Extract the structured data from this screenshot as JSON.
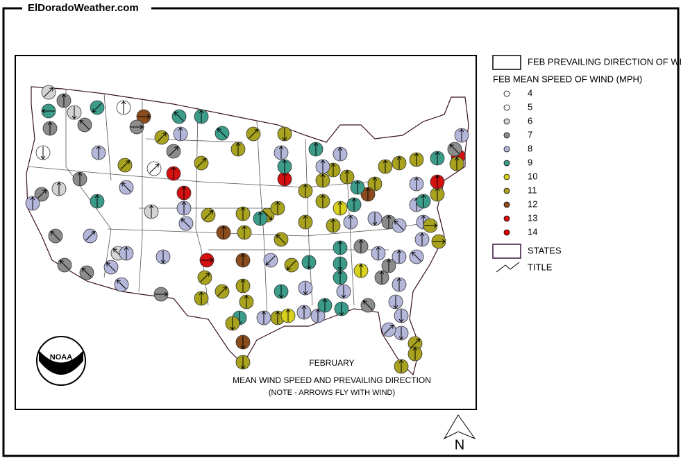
{
  "header": {
    "site": "ElDoradoWeather.com"
  },
  "map": {
    "title": "FEBRUARY",
    "subtitle": "MEAN WIND SPEED AND PREVAILING DIRECTION",
    "note": "(NOTE - ARROWS FLY WITH WIND)",
    "logo": "NOAA",
    "north": "N",
    "stations": [
      {
        "speed": 6,
        "direction": 45
      },
      {
        "speed": 7,
        "direction": 0
      },
      {
        "speed": 9,
        "direction": 270
      },
      {
        "speed": 6,
        "direction": 180
      },
      {
        "speed": 9,
        "direction": 225
      },
      {
        "speed": 5,
        "direction": 0
      },
      {
        "speed": 12,
        "direction": 90
      },
      {
        "speed": 7,
        "direction": 90
      },
      {
        "speed": 7,
        "direction": 315
      },
      {
        "speed": 7,
        "direction": 0
      },
      {
        "speed": 5,
        "direction": 180
      },
      {
        "speed": 8,
        "direction": 0
      },
      {
        "speed": 11,
        "direction": 45
      },
      {
        "speed": 7,
        "direction": 45
      },
      {
        "speed": 8,
        "direction": 0
      },
      {
        "speed": 9,
        "direction": 315
      },
      {
        "speed": 9,
        "direction": 0
      },
      {
        "speed": 9,
        "direction": 315
      },
      {
        "speed": 11,
        "direction": 45
      },
      {
        "speed": 11,
        "direction": 180
      },
      {
        "speed": 11,
        "direction": 0
      },
      {
        "speed": 11,
        "direction": 45
      },
      {
        "speed": 11,
        "direction": 45
      },
      {
        "speed": 5,
        "direction": 45
      },
      {
        "speed": 13,
        "direction": 0
      },
      {
        "speed": 13,
        "direction": 0
      },
      {
        "speed": 7,
        "direction": 45
      },
      {
        "speed": 8,
        "direction": 0
      },
      {
        "speed": 6,
        "direction": 0
      },
      {
        "speed": 7,
        "direction": 0
      },
      {
        "speed": 9,
        "direction": 0
      },
      {
        "speed": 8,
        "direction": 315
      },
      {
        "speed": 6,
        "direction": 0
      },
      {
        "speed": 8,
        "direction": 0
      },
      {
        "speed": 8,
        "direction": 315
      },
      {
        "speed": 11,
        "direction": 45
      },
      {
        "speed": 12,
        "direction": 0
      },
      {
        "speed": 11,
        "direction": 0
      },
      {
        "speed": 11,
        "direction": 135
      },
      {
        "speed": 11,
        "direction": 0
      },
      {
        "speed": 9,
        "direction": 0
      },
      {
        "speed": 11,
        "direction": 315
      },
      {
        "speed": 8,
        "direction": 45
      },
      {
        "speed": 7,
        "direction": 315
      },
      {
        "speed": 7,
        "direction": 315
      },
      {
        "speed": 7,
        "direction": 315
      },
      {
        "speed": 6,
        "direction": 315
      },
      {
        "speed": 8,
        "direction": 0
      },
      {
        "speed": 8,
        "direction": 315
      },
      {
        "speed": 8,
        "direction": 315
      },
      {
        "speed": 8,
        "direction": 180
      },
      {
        "speed": 13,
        "direction": 90
      },
      {
        "speed": 12,
        "direction": 0
      },
      {
        "speed": 7,
        "direction": 90
      },
      {
        "speed": 11,
        "direction": 45
      },
      {
        "speed": 11,
        "direction": 45
      },
      {
        "speed": 11,
        "direction": 0
      },
      {
        "speed": 11,
        "direction": 0
      },
      {
        "speed": 11,
        "direction": 0
      },
      {
        "speed": 9,
        "direction": 180
      },
      {
        "speed": 11,
        "direction": 180
      },
      {
        "speed": 8,
        "direction": 0
      },
      {
        "speed": 9,
        "direction": 180
      },
      {
        "speed": 11,
        "direction": 0
      },
      {
        "speed": 10,
        "direction": 0
      },
      {
        "speed": 12,
        "direction": 180
      },
      {
        "speed": 11,
        "direction": 180
      },
      {
        "speed": 8,
        "direction": 225
      },
      {
        "speed": 11,
        "direction": 225
      },
      {
        "speed": 9,
        "direction": 180
      },
      {
        "speed": 8,
        "direction": 180
      },
      {
        "speed": 8,
        "direction": 0
      },
      {
        "speed": 8,
        "direction": 0
      },
      {
        "speed": 9,
        "direction": 0
      },
      {
        "speed": 9,
        "direction": 180
      },
      {
        "speed": 7,
        "direction": 315
      },
      {
        "speed": 9,
        "direction": 0
      },
      {
        "speed": 8,
        "direction": 180
      },
      {
        "speed": 9,
        "direction": 180
      },
      {
        "speed": 9,
        "direction": 0
      },
      {
        "speed": 7,
        "direction": 0
      },
      {
        "speed": 10,
        "direction": 0
      },
      {
        "speed": 7,
        "direction": 0
      },
      {
        "speed": 7,
        "direction": 0
      },
      {
        "speed": 8,
        "direction": 0
      },
      {
        "speed": 8,
        "direction": 0
      },
      {
        "speed": 8,
        "direction": 0
      },
      {
        "speed": 8,
        "direction": 315
      },
      {
        "speed": 8,
        "direction": 180
      },
      {
        "speed": 8,
        "direction": 180
      },
      {
        "speed": 8,
        "direction": 180
      },
      {
        "speed": 8,
        "direction": 45
      },
      {
        "speed": 11,
        "direction": 45
      },
      {
        "speed": 11,
        "direction": 0
      },
      {
        "speed": 11,
        "direction": 0
      },
      {
        "speed": 7,
        "direction": 0
      },
      {
        "speed": 8,
        "direction": 180
      },
      {
        "speed": 8,
        "direction": 315
      },
      {
        "speed": 8,
        "direction": 0
      },
      {
        "speed": 11,
        "direction": 90
      },
      {
        "speed": 11,
        "direction": 90
      },
      {
        "speed": 8,
        "direction": 0
      },
      {
        "speed": 8,
        "direction": 0
      },
      {
        "speed": 9,
        "direction": 0
      },
      {
        "speed": 11,
        "direction": 0
      },
      {
        "speed": 8,
        "direction": 0
      },
      {
        "speed": 13,
        "direction": 0
      },
      {
        "speed": 13,
        "direction": 0
      },
      {
        "speed": 7,
        "direction": 315
      },
      {
        "speed": 9,
        "direction": 0
      },
      {
        "speed": 8,
        "direction": 0
      },
      {
        "speed": 11,
        "direction": 0
      },
      {
        "speed": 11,
        "direction": 0
      },
      {
        "speed": 11,
        "direction": 0
      },
      {
        "speed": 11,
        "direction": 0
      },
      {
        "speed": 11,
        "direction": 0
      },
      {
        "speed": 12,
        "direction": 0
      },
      {
        "speed": 9,
        "direction": 0
      },
      {
        "speed": 11,
        "direction": 0
      },
      {
        "speed": 11,
        "direction": 0
      },
      {
        "speed": 11,
        "direction": 0
      },
      {
        "speed": 11,
        "direction": 0
      },
      {
        "speed": 11,
        "direction": 0
      },
      {
        "speed": 10,
        "direction": 0
      },
      {
        "speed": 9,
        "direction": 0
      },
      {
        "speed": 8,
        "direction": 0
      },
      {
        "speed": 11,
        "direction": 0
      },
      {
        "speed": 11,
        "direction": 0
      },
      {
        "speed": 11,
        "direction": 0
      },
      {
        "speed": 13,
        "direction": 0
      },
      {
        "speed": 9,
        "direction": 0
      },
      {
        "speed": 8,
        "direction": 0
      },
      {
        "speed": 9,
        "direction": 0
      },
      {
        "speed": 8,
        "direction": 0
      },
      {
        "speed": 8,
        "direction": 0
      }
    ]
  },
  "legend": {
    "direction_label": "FEB PREVAILING DIRECTION OF WIND",
    "speed_label": "FEB MEAN SPEED OF WIND (MPH)",
    "speeds": [
      {
        "value": 4,
        "color": "#ffffff"
      },
      {
        "value": 5,
        "color": "#ffffff"
      },
      {
        "value": 6,
        "color": "#d4d4d4"
      },
      {
        "value": 7,
        "color": "#8c8c8c"
      },
      {
        "value": 8,
        "color": "#b4b6da"
      },
      {
        "value": 9,
        "color": "#3c9c8a"
      },
      {
        "value": 10,
        "color": "#d8d21e"
      },
      {
        "value": 11,
        "color": "#a8a21e"
      },
      {
        "value": 12,
        "color": "#8a4c1c"
      },
      {
        "value": 13,
        "color": "#d41010"
      },
      {
        "value": 14,
        "color": "#e00000"
      }
    ],
    "states_label": "STATES",
    "title_label": "TITLE"
  }
}
